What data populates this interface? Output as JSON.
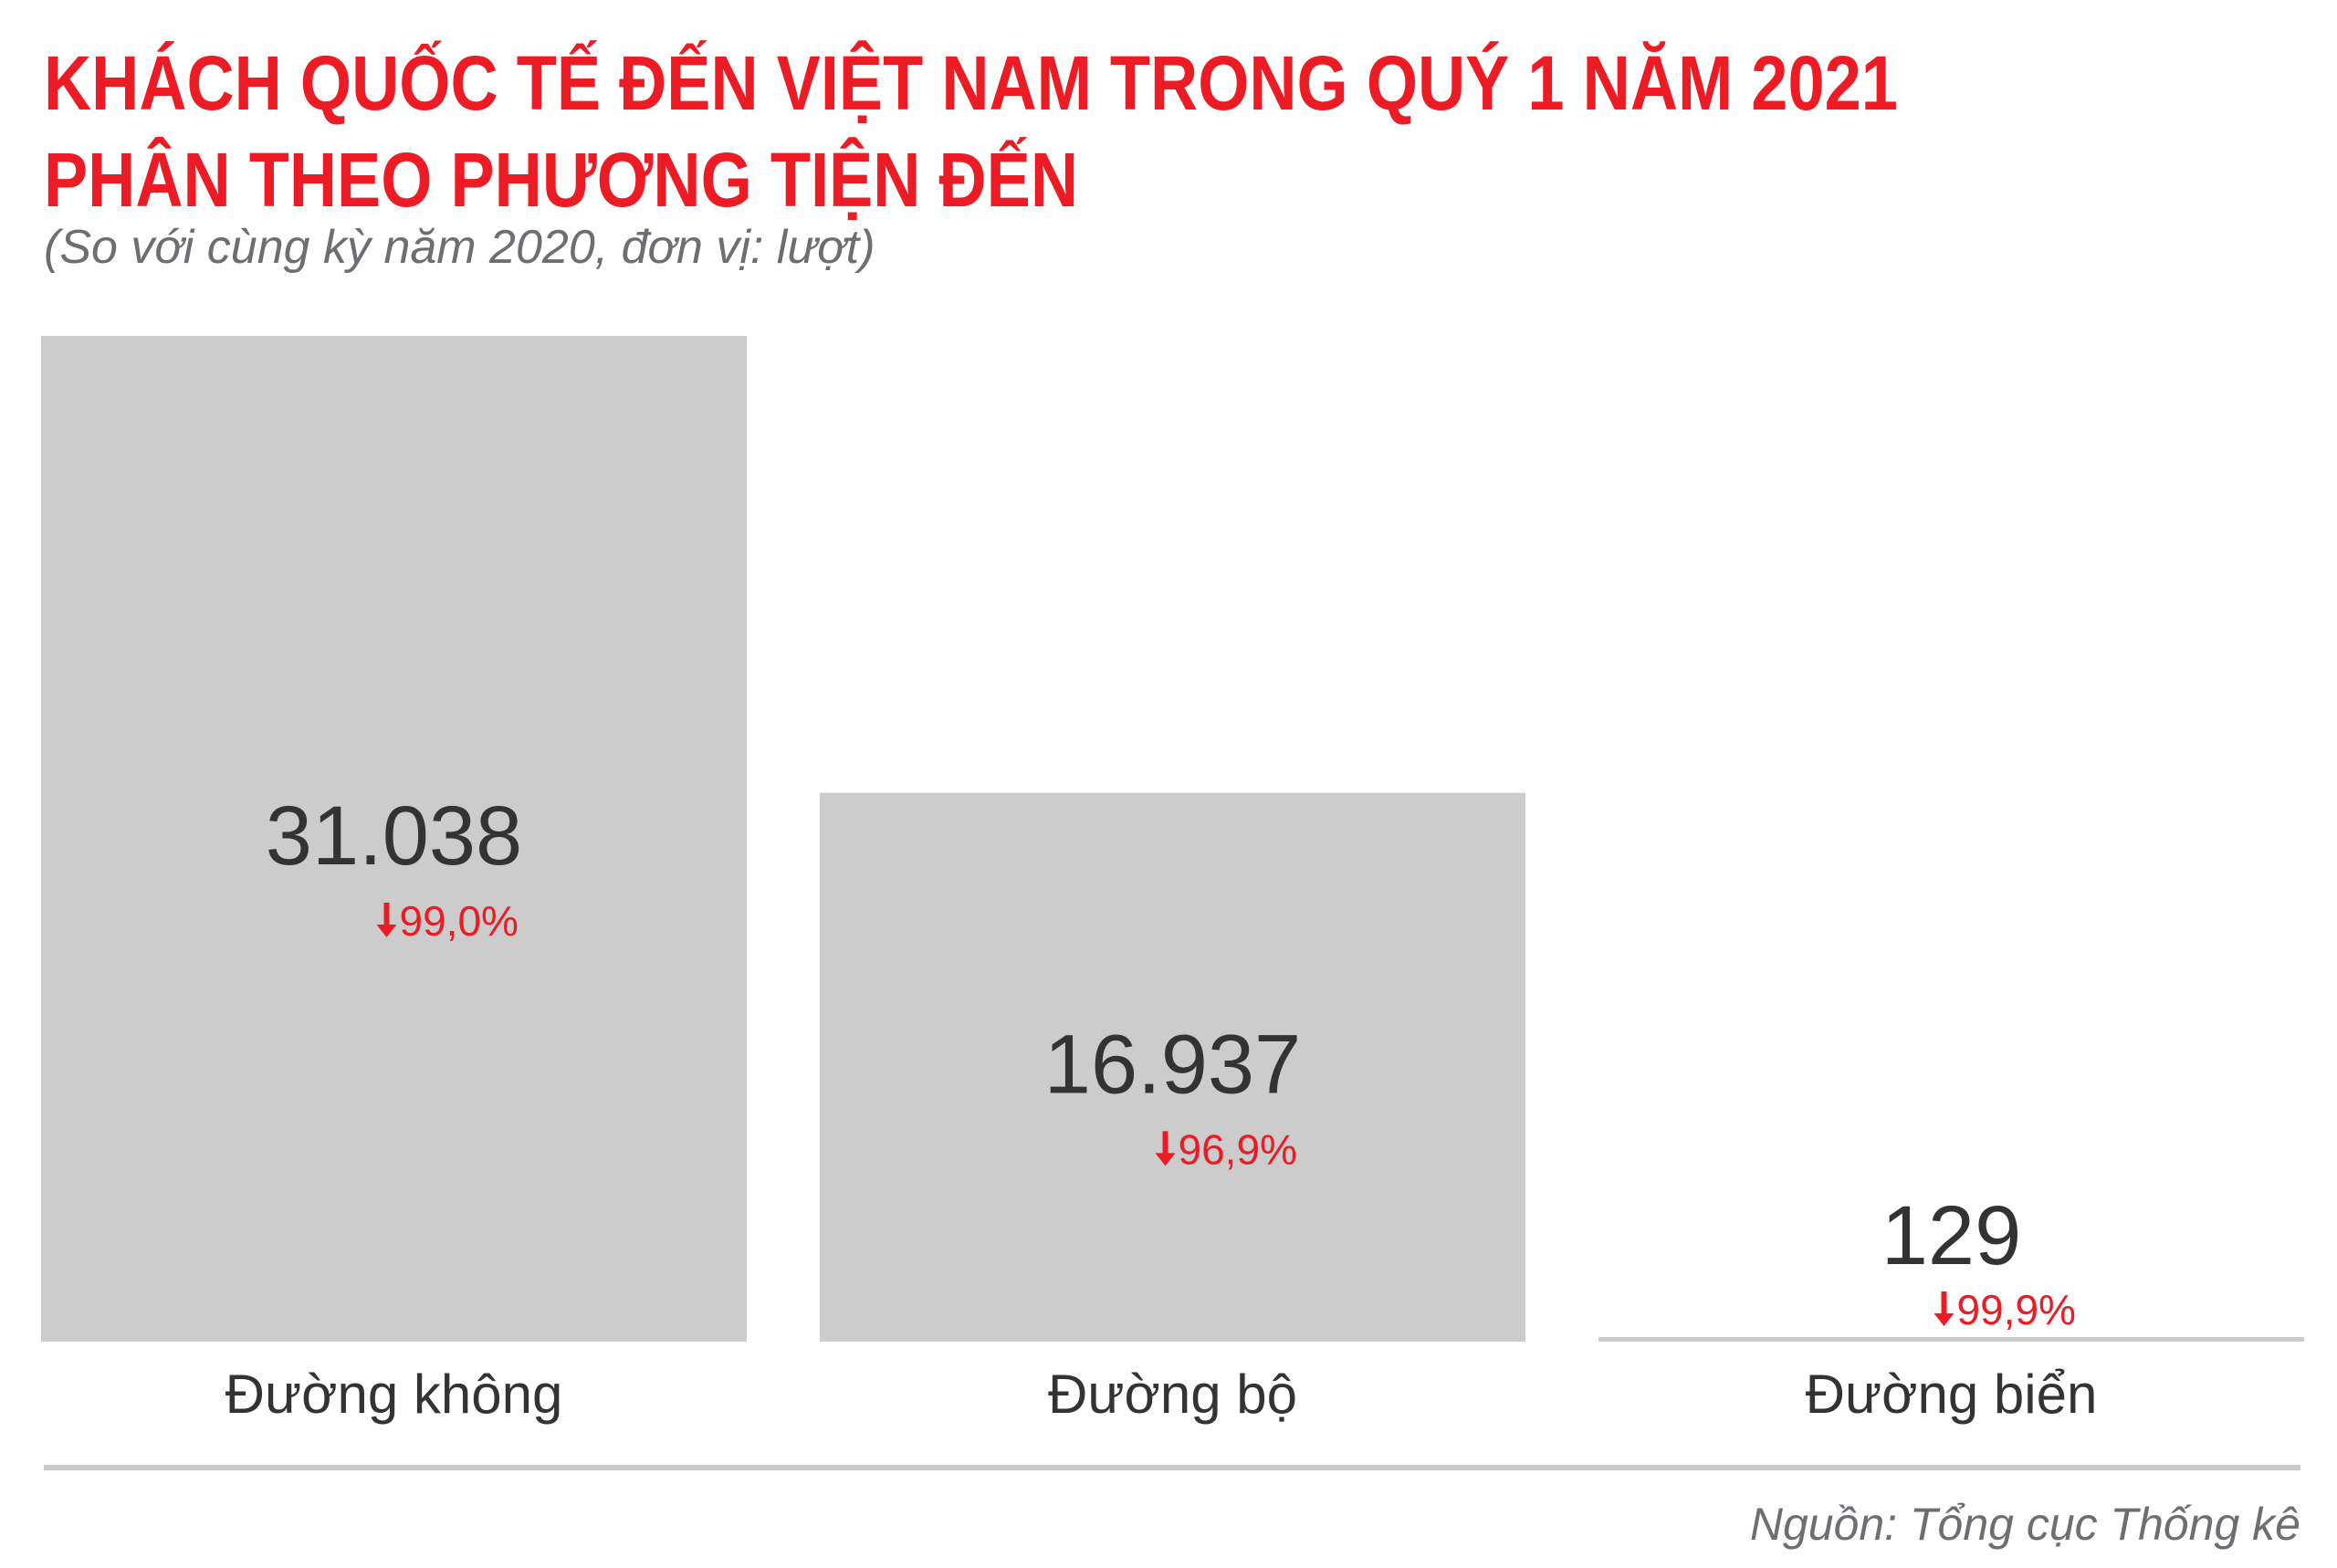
{
  "header": {
    "title_line1": "KHÁCH QUỐC TẾ ĐẾN VIỆT NAM TRONG QUÝ 1 NĂM 2021",
    "title_line2": "PHÂN THEO PHƯƠNG TIỆN ĐẾN",
    "subtitle": "(So với cùng kỳ năm 2020, đơn vị: lượt)"
  },
  "footer": {
    "source": "Nguồn: Tổng cục Thống kê"
  },
  "colors": {
    "accent": "#ed1c24",
    "bar": "#cccccc",
    "value_text": "#333333",
    "label_text": "#333333",
    "muted": "#6d6e71"
  },
  "chart_data": {
    "type": "bar",
    "title": "KHÁCH QUỐC TẾ ĐẾN VIỆT NAM TRONG QUÝ 1 NĂM 2021 PHÂN THEO PHƯƠNG TIỆN ĐẾN",
    "subtitle": "(So với cùng kỳ năm 2020, đơn vị: lượt)",
    "categories": [
      "Đường không",
      "Đường bộ",
      "Đường biển"
    ],
    "values": [
      31038,
      16937,
      129
    ],
    "value_labels": [
      "31.038",
      "16.937",
      "129"
    ],
    "change_labels": [
      "99,0%",
      "96,9%",
      "99,9%"
    ],
    "change_direction": "down",
    "change_icon": "arrow-down-icon",
    "ylim": [
      0,
      31038
    ],
    "xlabel": "",
    "ylabel": "",
    "grid": false,
    "legend": "none"
  }
}
